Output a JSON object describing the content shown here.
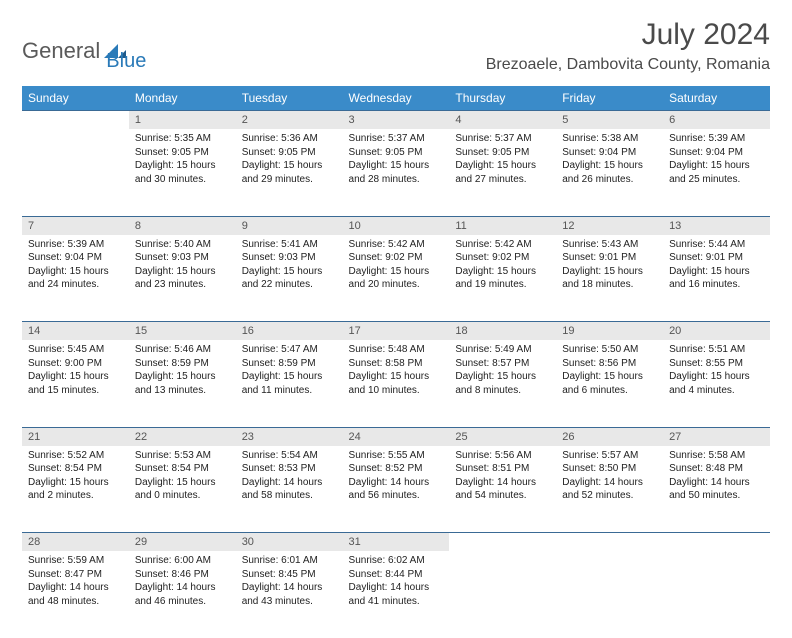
{
  "logo": {
    "text1": "General",
    "text2": "Blue"
  },
  "title": "July 2024",
  "location": "Brezoaele, Dambovita County, Romania",
  "day_headers": [
    "Sunday",
    "Monday",
    "Tuesday",
    "Wednesday",
    "Thursday",
    "Friday",
    "Saturday"
  ],
  "colors": {
    "header_bg": "#3a8bc9",
    "header_fg": "#ffffff",
    "daynum_bg": "#e8e8e8",
    "border": "#3a6a95",
    "logo_gray": "#5a5a5a",
    "logo_blue": "#2a7ab8"
  },
  "weeks": [
    [
      null,
      {
        "n": "1",
        "sr": "5:35 AM",
        "ss": "9:05 PM",
        "dl": "15 hours and 30 minutes."
      },
      {
        "n": "2",
        "sr": "5:36 AM",
        "ss": "9:05 PM",
        "dl": "15 hours and 29 minutes."
      },
      {
        "n": "3",
        "sr": "5:37 AM",
        "ss": "9:05 PM",
        "dl": "15 hours and 28 minutes."
      },
      {
        "n": "4",
        "sr": "5:37 AM",
        "ss": "9:05 PM",
        "dl": "15 hours and 27 minutes."
      },
      {
        "n": "5",
        "sr": "5:38 AM",
        "ss": "9:04 PM",
        "dl": "15 hours and 26 minutes."
      },
      {
        "n": "6",
        "sr": "5:39 AM",
        "ss": "9:04 PM",
        "dl": "15 hours and 25 minutes."
      }
    ],
    [
      {
        "n": "7",
        "sr": "5:39 AM",
        "ss": "9:04 PM",
        "dl": "15 hours and 24 minutes."
      },
      {
        "n": "8",
        "sr": "5:40 AM",
        "ss": "9:03 PM",
        "dl": "15 hours and 23 minutes."
      },
      {
        "n": "9",
        "sr": "5:41 AM",
        "ss": "9:03 PM",
        "dl": "15 hours and 22 minutes."
      },
      {
        "n": "10",
        "sr": "5:42 AM",
        "ss": "9:02 PM",
        "dl": "15 hours and 20 minutes."
      },
      {
        "n": "11",
        "sr": "5:42 AM",
        "ss": "9:02 PM",
        "dl": "15 hours and 19 minutes."
      },
      {
        "n": "12",
        "sr": "5:43 AM",
        "ss": "9:01 PM",
        "dl": "15 hours and 18 minutes."
      },
      {
        "n": "13",
        "sr": "5:44 AM",
        "ss": "9:01 PM",
        "dl": "15 hours and 16 minutes."
      }
    ],
    [
      {
        "n": "14",
        "sr": "5:45 AM",
        "ss": "9:00 PM",
        "dl": "15 hours and 15 minutes."
      },
      {
        "n": "15",
        "sr": "5:46 AM",
        "ss": "8:59 PM",
        "dl": "15 hours and 13 minutes."
      },
      {
        "n": "16",
        "sr": "5:47 AM",
        "ss": "8:59 PM",
        "dl": "15 hours and 11 minutes."
      },
      {
        "n": "17",
        "sr": "5:48 AM",
        "ss": "8:58 PM",
        "dl": "15 hours and 10 minutes."
      },
      {
        "n": "18",
        "sr": "5:49 AM",
        "ss": "8:57 PM",
        "dl": "15 hours and 8 minutes."
      },
      {
        "n": "19",
        "sr": "5:50 AM",
        "ss": "8:56 PM",
        "dl": "15 hours and 6 minutes."
      },
      {
        "n": "20",
        "sr": "5:51 AM",
        "ss": "8:55 PM",
        "dl": "15 hours and 4 minutes."
      }
    ],
    [
      {
        "n": "21",
        "sr": "5:52 AM",
        "ss": "8:54 PM",
        "dl": "15 hours and 2 minutes."
      },
      {
        "n": "22",
        "sr": "5:53 AM",
        "ss": "8:54 PM",
        "dl": "15 hours and 0 minutes."
      },
      {
        "n": "23",
        "sr": "5:54 AM",
        "ss": "8:53 PM",
        "dl": "14 hours and 58 minutes."
      },
      {
        "n": "24",
        "sr": "5:55 AM",
        "ss": "8:52 PM",
        "dl": "14 hours and 56 minutes."
      },
      {
        "n": "25",
        "sr": "5:56 AM",
        "ss": "8:51 PM",
        "dl": "14 hours and 54 minutes."
      },
      {
        "n": "26",
        "sr": "5:57 AM",
        "ss": "8:50 PM",
        "dl": "14 hours and 52 minutes."
      },
      {
        "n": "27",
        "sr": "5:58 AM",
        "ss": "8:48 PM",
        "dl": "14 hours and 50 minutes."
      }
    ],
    [
      {
        "n": "28",
        "sr": "5:59 AM",
        "ss": "8:47 PM",
        "dl": "14 hours and 48 minutes."
      },
      {
        "n": "29",
        "sr": "6:00 AM",
        "ss": "8:46 PM",
        "dl": "14 hours and 46 minutes."
      },
      {
        "n": "30",
        "sr": "6:01 AM",
        "ss": "8:45 PM",
        "dl": "14 hours and 43 minutes."
      },
      {
        "n": "31",
        "sr": "6:02 AM",
        "ss": "8:44 PM",
        "dl": "14 hours and 41 minutes."
      },
      null,
      null,
      null
    ]
  ],
  "labels": {
    "sunrise": "Sunrise: ",
    "sunset": "Sunset: ",
    "daylight": "Daylight: "
  }
}
